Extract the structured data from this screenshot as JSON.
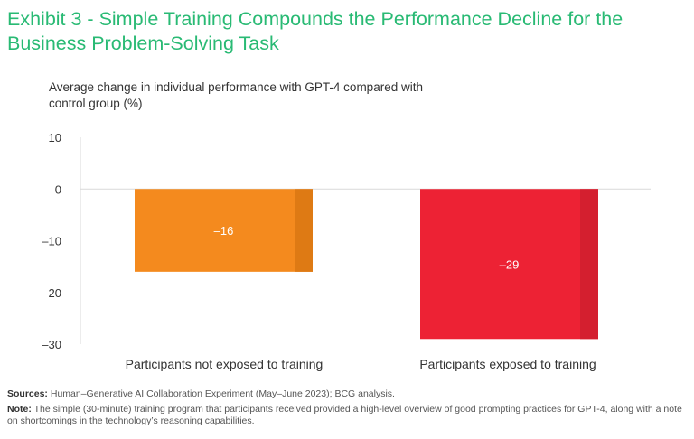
{
  "title": "Exhibit 3 - Simple Training Compounds the Performance Decline for the Business Problem-Solving Task",
  "subtitle": "Average change in individual performance with GPT-4 compared with control group (%)",
  "colors": {
    "title": "#29ba74",
    "bar1": "#f48a1e",
    "bar2": "#ed2234"
  },
  "chart_data": {
    "type": "bar",
    "title": "Exhibit 3 - Simple Training Compounds the Performance Decline for the Business Problem-Solving Task",
    "ylabel": "Average change in individual performance with GPT-4 compared with control group (%)",
    "xlabel": "",
    "ylim": [
      -30,
      10
    ],
    "yticks": [
      10,
      0,
      -10,
      -20,
      -30
    ],
    "ytick_labels": [
      "10",
      "0",
      "–10",
      "–20",
      "–30"
    ],
    "categories": [
      "Participants not exposed to training",
      "Participants exposed to training"
    ],
    "values": [
      -16,
      -29
    ],
    "value_labels": [
      "–16",
      "–29"
    ],
    "grid": false,
    "legend": "none"
  },
  "footer": {
    "sources_label": "Sources:",
    "sources_text": " Human–Generative AI Collaboration Experiment (May–June 2023); BCG analysis.",
    "note_label": "Note:",
    "note_text": " The simple (30-minute) training program that participants received provided a high-level overview of good prompting practices for GPT-4, along with a note on shortcomings in the technology’s reasoning capabilities."
  }
}
